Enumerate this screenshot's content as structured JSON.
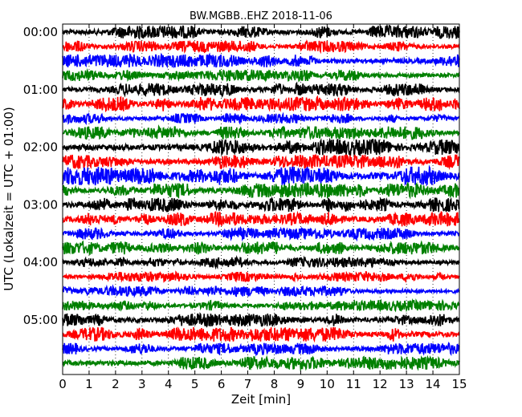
{
  "chart_data": {
    "type": "line",
    "title": "BW.MGBB..EHZ 2018-11-06",
    "xlabel": "Zeit  [min]",
    "ylabel": "UTC (Lokalzeit = UTC + 01:00)",
    "xlim": [
      0,
      15
    ],
    "x_ticks": [
      "0",
      "1",
      "2",
      "3",
      "4",
      "5",
      "6",
      "7",
      "8",
      "9",
      "10",
      "11",
      "12",
      "13",
      "14",
      "15"
    ],
    "y_ticks": [
      {
        "row": 0,
        "label": "00:00"
      },
      {
        "row": 4,
        "label": "01:00"
      },
      {
        "row": 8,
        "label": "02:00"
      },
      {
        "row": 12,
        "label": "03:00"
      },
      {
        "row": 16,
        "label": "04:00"
      },
      {
        "row": 20,
        "label": "05:00"
      }
    ],
    "grid": "vertical-dotted",
    "row_colors": [
      "#000000",
      "#ff0000",
      "#0000ff",
      "#008000"
    ],
    "series": [
      {
        "start": "00:00",
        "color": "#000000",
        "amplitude": 0.45
      },
      {
        "start": "00:15",
        "color": "#ff0000",
        "amplitude": 0.4
      },
      {
        "start": "00:30",
        "color": "#0000ff",
        "amplitude": 0.45
      },
      {
        "start": "00:45",
        "color": "#008000",
        "amplitude": 0.4
      },
      {
        "start": "01:00",
        "color": "#000000",
        "amplitude": 0.45
      },
      {
        "start": "01:15",
        "color": "#ff0000",
        "amplitude": 0.5
      },
      {
        "start": "01:30",
        "color": "#0000ff",
        "amplitude": 0.35
      },
      {
        "start": "01:45",
        "color": "#008000",
        "amplitude": 0.45
      },
      {
        "start": "02:00",
        "color": "#000000",
        "amplitude": 0.55
      },
      {
        "start": "02:15",
        "color": "#ff0000",
        "amplitude": 0.5
      },
      {
        "start": "02:30",
        "color": "#0000ff",
        "amplitude": 0.65
      },
      {
        "start": "02:45",
        "color": "#008000",
        "amplitude": 0.5
      },
      {
        "start": "03:00",
        "color": "#000000",
        "amplitude": 0.5
      },
      {
        "start": "03:15",
        "color": "#ff0000",
        "amplitude": 0.5
      },
      {
        "start": "03:30",
        "color": "#0000ff",
        "amplitude": 0.4
      },
      {
        "start": "03:45",
        "color": "#008000",
        "amplitude": 0.45
      },
      {
        "start": "04:00",
        "color": "#000000",
        "amplitude": 0.35
      },
      {
        "start": "04:15",
        "color": "#ff0000",
        "amplitude": 0.35
      },
      {
        "start": "04:30",
        "color": "#0000ff",
        "amplitude": 0.35
      },
      {
        "start": "04:45",
        "color": "#008000",
        "amplitude": 0.35
      },
      {
        "start": "05:00",
        "color": "#000000",
        "amplitude": 0.45
      },
      {
        "start": "05:15",
        "color": "#ff0000",
        "amplitude": 0.5
      },
      {
        "start": "05:30",
        "color": "#0000ff",
        "amplitude": 0.4
      },
      {
        "start": "05:45",
        "color": "#008000",
        "amplitude": 0.45
      }
    ]
  }
}
